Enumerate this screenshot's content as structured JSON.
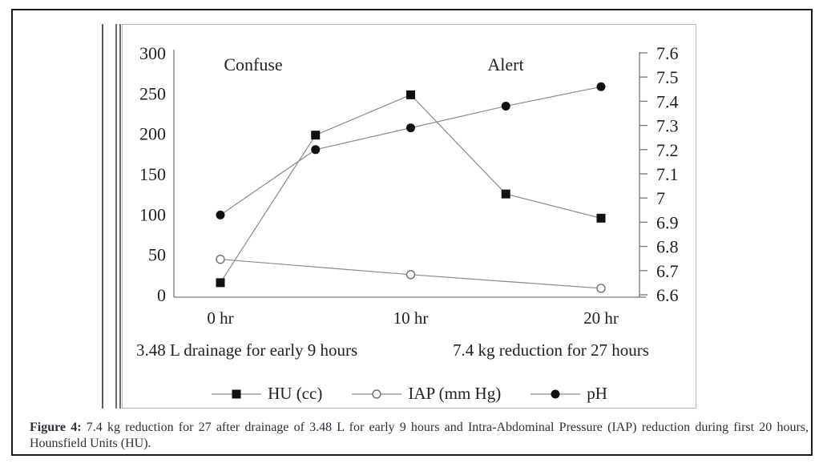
{
  "caption": {
    "label": "Figure 4:",
    "text": " 7.4 kg reduction for 27 after drainage of 3.48 L for early 9 hours and Intra-Abdominal Pressure (IAP) reduction during first 20 hours, Hounsfield Units (HU)."
  },
  "chart_data": {
    "type": "line",
    "title": "",
    "x_axis": {
      "unit": "hours",
      "range_hours": [
        0,
        20
      ],
      "tick_hours": [
        0,
        10,
        20
      ],
      "tick_labels": [
        "0 hr",
        "10 hr",
        "20 hr"
      ]
    },
    "left_axis": {
      "min": 0,
      "max": 300,
      "tick_labels_top_to_bottom": [
        "300",
        "250",
        "200",
        "150",
        "100",
        "50",
        "0"
      ]
    },
    "right_axis": {
      "min": 6.6,
      "max": 7.6,
      "tick_labels_top_to_bottom": [
        "7.6",
        "7.5",
        "7.4",
        "7.3",
        "7.2",
        "7.1",
        "7",
        "6.9",
        "6.8",
        "6.7",
        "6.6"
      ]
    },
    "grid": false,
    "series": [
      {
        "name": "HU (cc)",
        "axis": "left",
        "marker": "filled-square",
        "hours": [
          0,
          5,
          10,
          15,
          20
        ],
        "values": [
          15,
          198,
          248,
          125,
          95
        ]
      },
      {
        "name": "IAP (mm Hg)",
        "axis": "left",
        "marker": "open-circle",
        "hours": [
          0,
          10,
          20
        ],
        "values": [
          44,
          25,
          8
        ]
      },
      {
        "name": "pH",
        "axis": "right",
        "marker": "filled-circle",
        "hours": [
          0,
          5,
          10,
          15,
          20
        ],
        "values": [
          6.93,
          7.2,
          7.29,
          7.38,
          7.46
        ]
      }
    ],
    "annotations": [
      {
        "text": "Confuse",
        "position": "upper-left"
      },
      {
        "text": "Alert",
        "position": "upper-right"
      }
    ],
    "notes": [
      "3.48 L drainage for early 9 hours",
      "7.4 kg reduction for 27 hours"
    ],
    "legend": {
      "position": "bottom",
      "entries": [
        "HU (cc)",
        "IAP (mm Hg)",
        "pH"
      ]
    },
    "colors": {
      "marker": "#111111",
      "line": "#8a8a8a",
      "axis": "#787878",
      "panel_border": "#b7b7b7"
    }
  }
}
